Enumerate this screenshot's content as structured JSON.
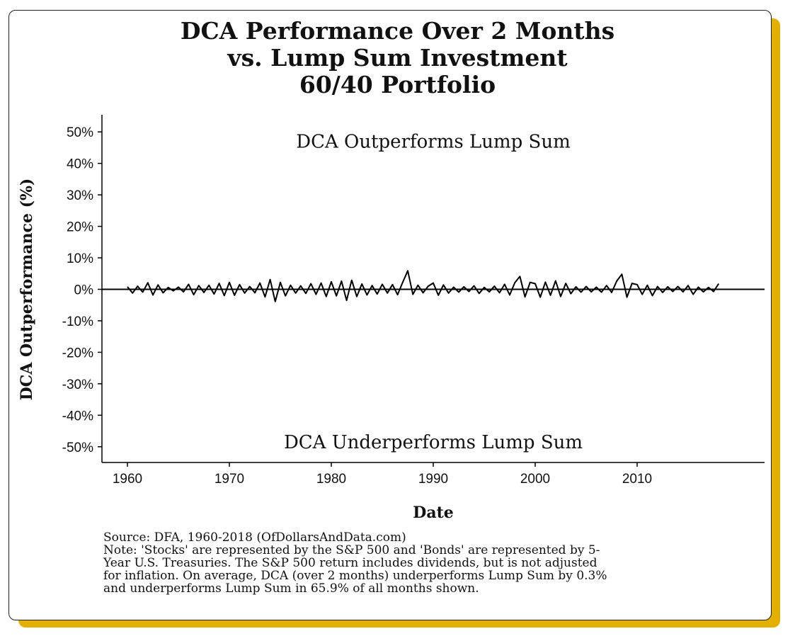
{
  "chart_data": {
    "type": "line",
    "title_lines": [
      "DCA Performance Over 2 Months",
      "vs. Lump Sum Investment",
      "60/40 Portfolio"
    ],
    "xlabel": "Date",
    "ylabel": "DCA Outperformance (%)",
    "xlim": [
      1957.5,
      2022.5
    ],
    "ylim": [
      -55,
      55
    ],
    "x_ticks": [
      {
        "value": 1960,
        "label": "1960"
      },
      {
        "value": 1970,
        "label": "1970"
      },
      {
        "value": 1980,
        "label": "1980"
      },
      {
        "value": 1990,
        "label": "1990"
      },
      {
        "value": 2000,
        "label": "2000"
      },
      {
        "value": 2010,
        "label": "2010"
      }
    ],
    "y_ticks": [
      {
        "value": 50,
        "label": "50%"
      },
      {
        "value": 40,
        "label": "40%"
      },
      {
        "value": 30,
        "label": "30%"
      },
      {
        "value": 20,
        "label": "20%"
      },
      {
        "value": 10,
        "label": "10%"
      },
      {
        "value": 0,
        "label": "0%"
      },
      {
        "value": -10,
        "label": "-10%"
      },
      {
        "value": -20,
        "label": "-20%"
      },
      {
        "value": -30,
        "label": "-30%"
      },
      {
        "value": -40,
        "label": "-40%"
      },
      {
        "value": -50,
        "label": "-50%"
      }
    ],
    "reference_line": 0,
    "annotations": [
      {
        "text": "DCA Outperforms Lump Sum",
        "x": 1990,
        "y": 47
      },
      {
        "text": "DCA Underperforms Lump Sum",
        "x": 1990,
        "y": -48.5
      }
    ],
    "series": [
      {
        "x": [
          1960.0,
          1960.5,
          1961.0,
          1961.5,
          1962.0,
          1962.5,
          1963.0,
          1963.5,
          1964.0,
          1964.5,
          1965.0,
          1965.5,
          1966.0,
          1966.5,
          1967.0,
          1967.5,
          1968.0,
          1968.5,
          1969.0,
          1969.5,
          1970.0,
          1970.5,
          1971.0,
          1971.5,
          1972.0,
          1972.5,
          1973.0,
          1973.5,
          1974.0,
          1974.5,
          1975.0,
          1975.5,
          1976.0,
          1976.5,
          1977.0,
          1977.5,
          1978.0,
          1978.5,
          1979.0,
          1979.5,
          1980.0,
          1980.5,
          1981.0,
          1981.5,
          1982.0,
          1982.5,
          1983.0,
          1983.5,
          1984.0,
          1984.5,
          1985.0,
          1985.5,
          1986.0,
          1986.5,
          1987.0,
          1987.5,
          1988.0,
          1988.5,
          1989.0,
          1989.5,
          1990.0,
          1990.5,
          1991.0,
          1991.5,
          1992.0,
          1992.5,
          1993.0,
          1993.5,
          1994.0,
          1994.5,
          1995.0,
          1995.5,
          1996.0,
          1996.5,
          1997.0,
          1997.5,
          1998.0,
          1998.5,
          1999.0,
          1999.5,
          2000.0,
          2000.5,
          2001.0,
          2001.5,
          2002.0,
          2002.5,
          2003.0,
          2003.5,
          2004.0,
          2004.5,
          2005.0,
          2005.5,
          2006.0,
          2006.5,
          2007.0,
          2007.5,
          2008.0,
          2008.5,
          2009.0,
          2009.5,
          2010.0,
          2010.5,
          2011.0,
          2011.5,
          2012.0,
          2012.5,
          2013.0,
          2013.5,
          2014.0,
          2014.5,
          2015.0,
          2015.5,
          2016.0,
          2016.5,
          2017.0,
          2017.5,
          2018.0
        ],
        "y": [
          0.8,
          -1.2,
          1.0,
          -0.9,
          2.1,
          -1.8,
          1.4,
          -1.1,
          0.6,
          -0.5,
          0.7,
          -0.8,
          1.6,
          -1.7,
          1.2,
          -1.0,
          1.3,
          -1.5,
          1.9,
          -2.0,
          2.2,
          -1.9,
          1.5,
          -1.2,
          0.9,
          -1.1,
          2.0,
          -2.4,
          3.1,
          -3.9,
          2.2,
          -2.1,
          1.3,
          -1.2,
          1.1,
          -1.3,
          1.8,
          -1.6,
          2.0,
          -2.3,
          2.4,
          -2.1,
          2.6,
          -3.5,
          2.9,
          -2.3,
          1.7,
          -1.8,
          1.2,
          -1.5,
          1.6,
          -1.2,
          1.5,
          -1.7,
          2.2,
          5.9,
          -1.6,
          1.3,
          -1.1,
          1.0,
          2.0,
          -1.9,
          1.4,
          -1.2,
          0.7,
          -0.9,
          0.8,
          -0.7,
          1.1,
          -1.3,
          0.6,
          -0.8,
          1.0,
          -1.1,
          1.6,
          -1.8,
          2.1,
          4.1,
          -2.4,
          2.2,
          1.8,
          -2.5,
          2.3,
          -1.9,
          2.7,
          -2.3,
          1.9,
          -1.4,
          0.8,
          -0.9,
          0.9,
          -0.8,
          0.7,
          -0.9,
          1.2,
          -1.0,
          2.6,
          4.8,
          -2.5,
          1.9,
          1.5,
          -1.6,
          1.3,
          -2.0,
          0.9,
          -1.0,
          0.8,
          -0.7,
          0.9,
          -0.8,
          1.2,
          -1.6,
          0.7,
          -0.8,
          0.6,
          -0.7,
          1.8
        ]
      }
    ],
    "grid": false
  },
  "footnote": {
    "source": "Source:  DFA, 1960-2018 (OfDollarsAndData.com)",
    "note_lines": [
      "Note: 'Stocks' are represented by the S&P 500 and 'Bonds' are represented by 5-",
      "Year U.S. Treasuries. The S&P 500 return includes dividends, but is not adjusted",
      "for inflation. On average, DCA (over 2 months) underperforms Lump Sum by 0.3%",
      "and underperforms Lump Sum in 65.9% of all months shown."
    ]
  },
  "colors": {
    "card_shadow": "#e3b000",
    "line": "#000000",
    "text": "#111111"
  }
}
